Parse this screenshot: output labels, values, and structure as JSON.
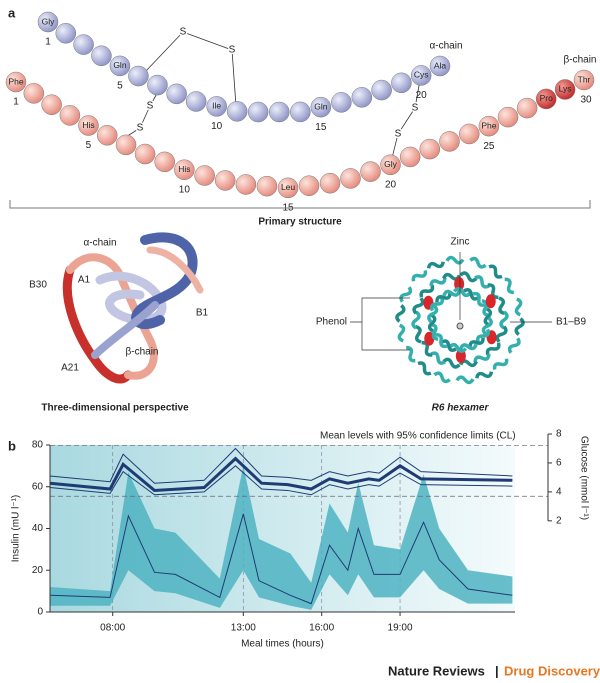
{
  "panel_a": {
    "label": "a",
    "alpha_chain": {
      "name": "α-chain",
      "residues": [
        "Gly",
        null,
        null,
        null,
        "Gln",
        null,
        null,
        null,
        null,
        "Ile",
        null,
        null,
        null,
        null,
        "Gln",
        null,
        null,
        null,
        null,
        "Cys",
        "Ala"
      ],
      "numbers": [
        1,
        null,
        null,
        null,
        5,
        null,
        null,
        null,
        null,
        10,
        null,
        null,
        null,
        null,
        15,
        null,
        null,
        null,
        null,
        20,
        null
      ]
    },
    "beta_chain": {
      "name": "β-chain",
      "residues": [
        "Phe",
        null,
        null,
        null,
        "His",
        null,
        null,
        null,
        null,
        "His",
        null,
        null,
        null,
        null,
        "Leu",
        null,
        null,
        null,
        null,
        "Gly",
        null,
        null,
        null,
        null,
        "Phe",
        null,
        null,
        "Pro",
        "Lys",
        "Thr"
      ],
      "numbers": [
        1,
        null,
        null,
        null,
        5,
        null,
        null,
        null,
        null,
        10,
        null,
        null,
        null,
        null,
        15,
        null,
        null,
        null,
        null,
        20,
        null,
        null,
        null,
        null,
        25,
        null,
        null,
        null,
        null,
        30
      ]
    },
    "disulfide_labels": [
      "S",
      "S",
      "S",
      "S",
      "S",
      "S"
    ],
    "primary_caption": "Primary structure",
    "perspective": {
      "labels": [
        "α-chain",
        "A1",
        "B30",
        "B1",
        "A21",
        "β-chain"
      ],
      "caption": "Three-dimensional perspective"
    },
    "hexamer": {
      "labels": [
        "Zinc",
        "Phenol",
        "B1–B9"
      ],
      "caption": "R6 hexamer"
    }
  },
  "chart_data": {
    "type": "line",
    "label": "b",
    "annotation": "Mean levels with 95% confidence limits (CL)",
    "xlabel": "Meal times (hours)",
    "ylabel": "Insulin (mU l⁻¹)",
    "y2label": "Glucose (mmol l⁻¹)",
    "xlim": [
      5.6,
      23.4
    ],
    "xticks": [
      {
        "value": 8,
        "label": "08:00"
      },
      {
        "value": 13,
        "label": "13:00"
      },
      {
        "value": 16,
        "label": "16:00"
      },
      {
        "value": 19,
        "label": "19:00"
      }
    ],
    "ylim": [
      0,
      80
    ],
    "yticks": [
      0,
      20,
      40,
      60,
      80
    ],
    "y2lim": [
      -4.3,
      7.24
    ],
    "y2ticks": [
      2,
      4,
      6,
      8
    ],
    "reference_lines": [
      7.2,
      3.7
    ],
    "series": [
      {
        "color": "#1f3b73",
        "band_color": "#4fb3c2",
        "x": [
          5.6,
          7.9,
          8.6,
          9.6,
          10.4,
          12.1,
          13.0,
          13.6,
          14.8,
          15.6,
          16.3,
          17.0,
          17.4,
          18.0,
          19.0,
          19.9,
          20.5,
          21.6,
          23.3
        ],
        "values": [
          8,
          7,
          46,
          19,
          18,
          7,
          47,
          15,
          8,
          4,
          32,
          20,
          40,
          18,
          18,
          43,
          25,
          11,
          8
        ],
        "high": [
          12,
          10,
          67,
          40,
          38,
          16,
          70,
          35,
          28,
          14,
          52,
          38,
          62,
          32,
          30,
          66,
          40,
          20,
          17
        ],
        "low": [
          3,
          3,
          20,
          10,
          9,
          2,
          20,
          7,
          3,
          1,
          18,
          8,
          18,
          7,
          7,
          20,
          11,
          4,
          4
        ]
      },
      {
        "axis": "y2",
        "color": "#1f3b73",
        "x": [
          5.6,
          7.9,
          8.4,
          9.6,
          11.5,
          12.7,
          13.7,
          14.7,
          15.6,
          16.3,
          17.0,
          17.8,
          18.2,
          19.0,
          19.8,
          23.3
        ],
        "values": [
          4.6,
          4.2,
          5.9,
          4.1,
          4.3,
          6.3,
          4.6,
          4.5,
          4.2,
          4.9,
          4.6,
          4.9,
          4.8,
          5.8,
          4.9,
          4.8
        ],
        "high": [
          5.1,
          4.7,
          6.6,
          4.6,
          4.8,
          7.0,
          5.1,
          5.0,
          4.8,
          5.4,
          5.1,
          5.4,
          5.3,
          6.4,
          5.4,
          5.1
        ],
        "low": [
          4.3,
          3.9,
          5.4,
          3.8,
          4.0,
          5.8,
          4.2,
          4.1,
          3.8,
          4.5,
          4.2,
          4.5,
          4.4,
          5.3,
          4.5,
          4.4
        ]
      }
    ]
  },
  "footer": {
    "journal": "Nature Reviews",
    "separator": "|",
    "section": "Drug Discovery"
  }
}
